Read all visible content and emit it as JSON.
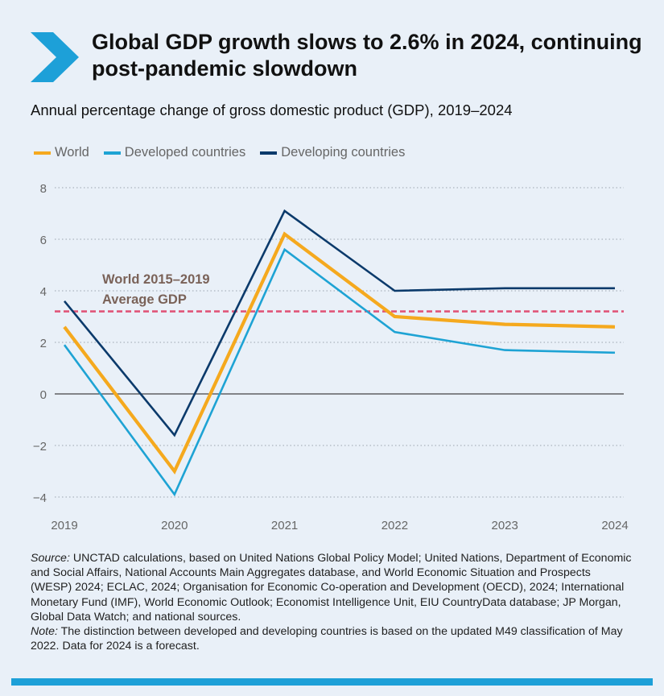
{
  "header": {
    "title": "Global GDP growth slows to 2.6% in 2024, continuing post-pandemic slowdown",
    "subtitle": "Annual percentage change of gross domestic product (GDP), 2019–2024",
    "chevron_icon": "chevron-right-icon",
    "accent": "#1da0d8"
  },
  "chart_data": {
    "type": "line",
    "title": "Annual percentage change of gross domestic product (GDP), 2019–2024",
    "xlabel": "",
    "ylabel": "",
    "x": [
      "2019",
      "2020",
      "2021",
      "2022",
      "2023",
      "2024"
    ],
    "ylim": [
      -4,
      8
    ],
    "yticks": [
      8,
      6,
      4,
      2,
      0,
      -2,
      -4
    ],
    "ytick_labels": [
      "8",
      "6",
      "4",
      "2",
      "0",
      "−2",
      "−4"
    ],
    "grid": true,
    "legend_position": "top-left",
    "series": [
      {
        "name": "World",
        "color": "#f5a91e",
        "values": [
          2.6,
          -3.0,
          6.2,
          3.0,
          2.7,
          2.6
        ]
      },
      {
        "name": "Developed countries",
        "color": "#1ea3d4",
        "values": [
          1.9,
          -3.9,
          5.6,
          2.4,
          1.7,
          1.6
        ]
      },
      {
        "name": "Developing countries",
        "color": "#0b3a6b",
        "values": [
          3.6,
          -1.6,
          7.1,
          4.0,
          4.1,
          4.1
        ]
      }
    ],
    "reference_line": {
      "value": 3.2,
      "color": "#e05578",
      "label_line1": "World 2015–2019",
      "label_line2": "Average GDP",
      "label_color": "#7a6258"
    }
  },
  "footer": {
    "source_label": "Source:",
    "source_text": "UNCTAD calculations, based on United Nations Global Policy Model; United Nations, Department of Economic and Social Affairs, National Accounts Main Aggregates database, and World Economic Situation and Prospects (WESP) 2024; ECLAC, 2024; Organisation for Economic Co-operation and Development (OECD), 2024; International Monetary Fund (IMF), World Economic Outlook; Economist Intelligence Unit, EIU CountryData database; JP Morgan, Global Data Watch; and national sources.",
    "note_label": "Note:",
    "note_text": "The distinction between developed and developing countries is based on the updated M49 classification of May 2022. Data for 2024 is a forecast."
  }
}
